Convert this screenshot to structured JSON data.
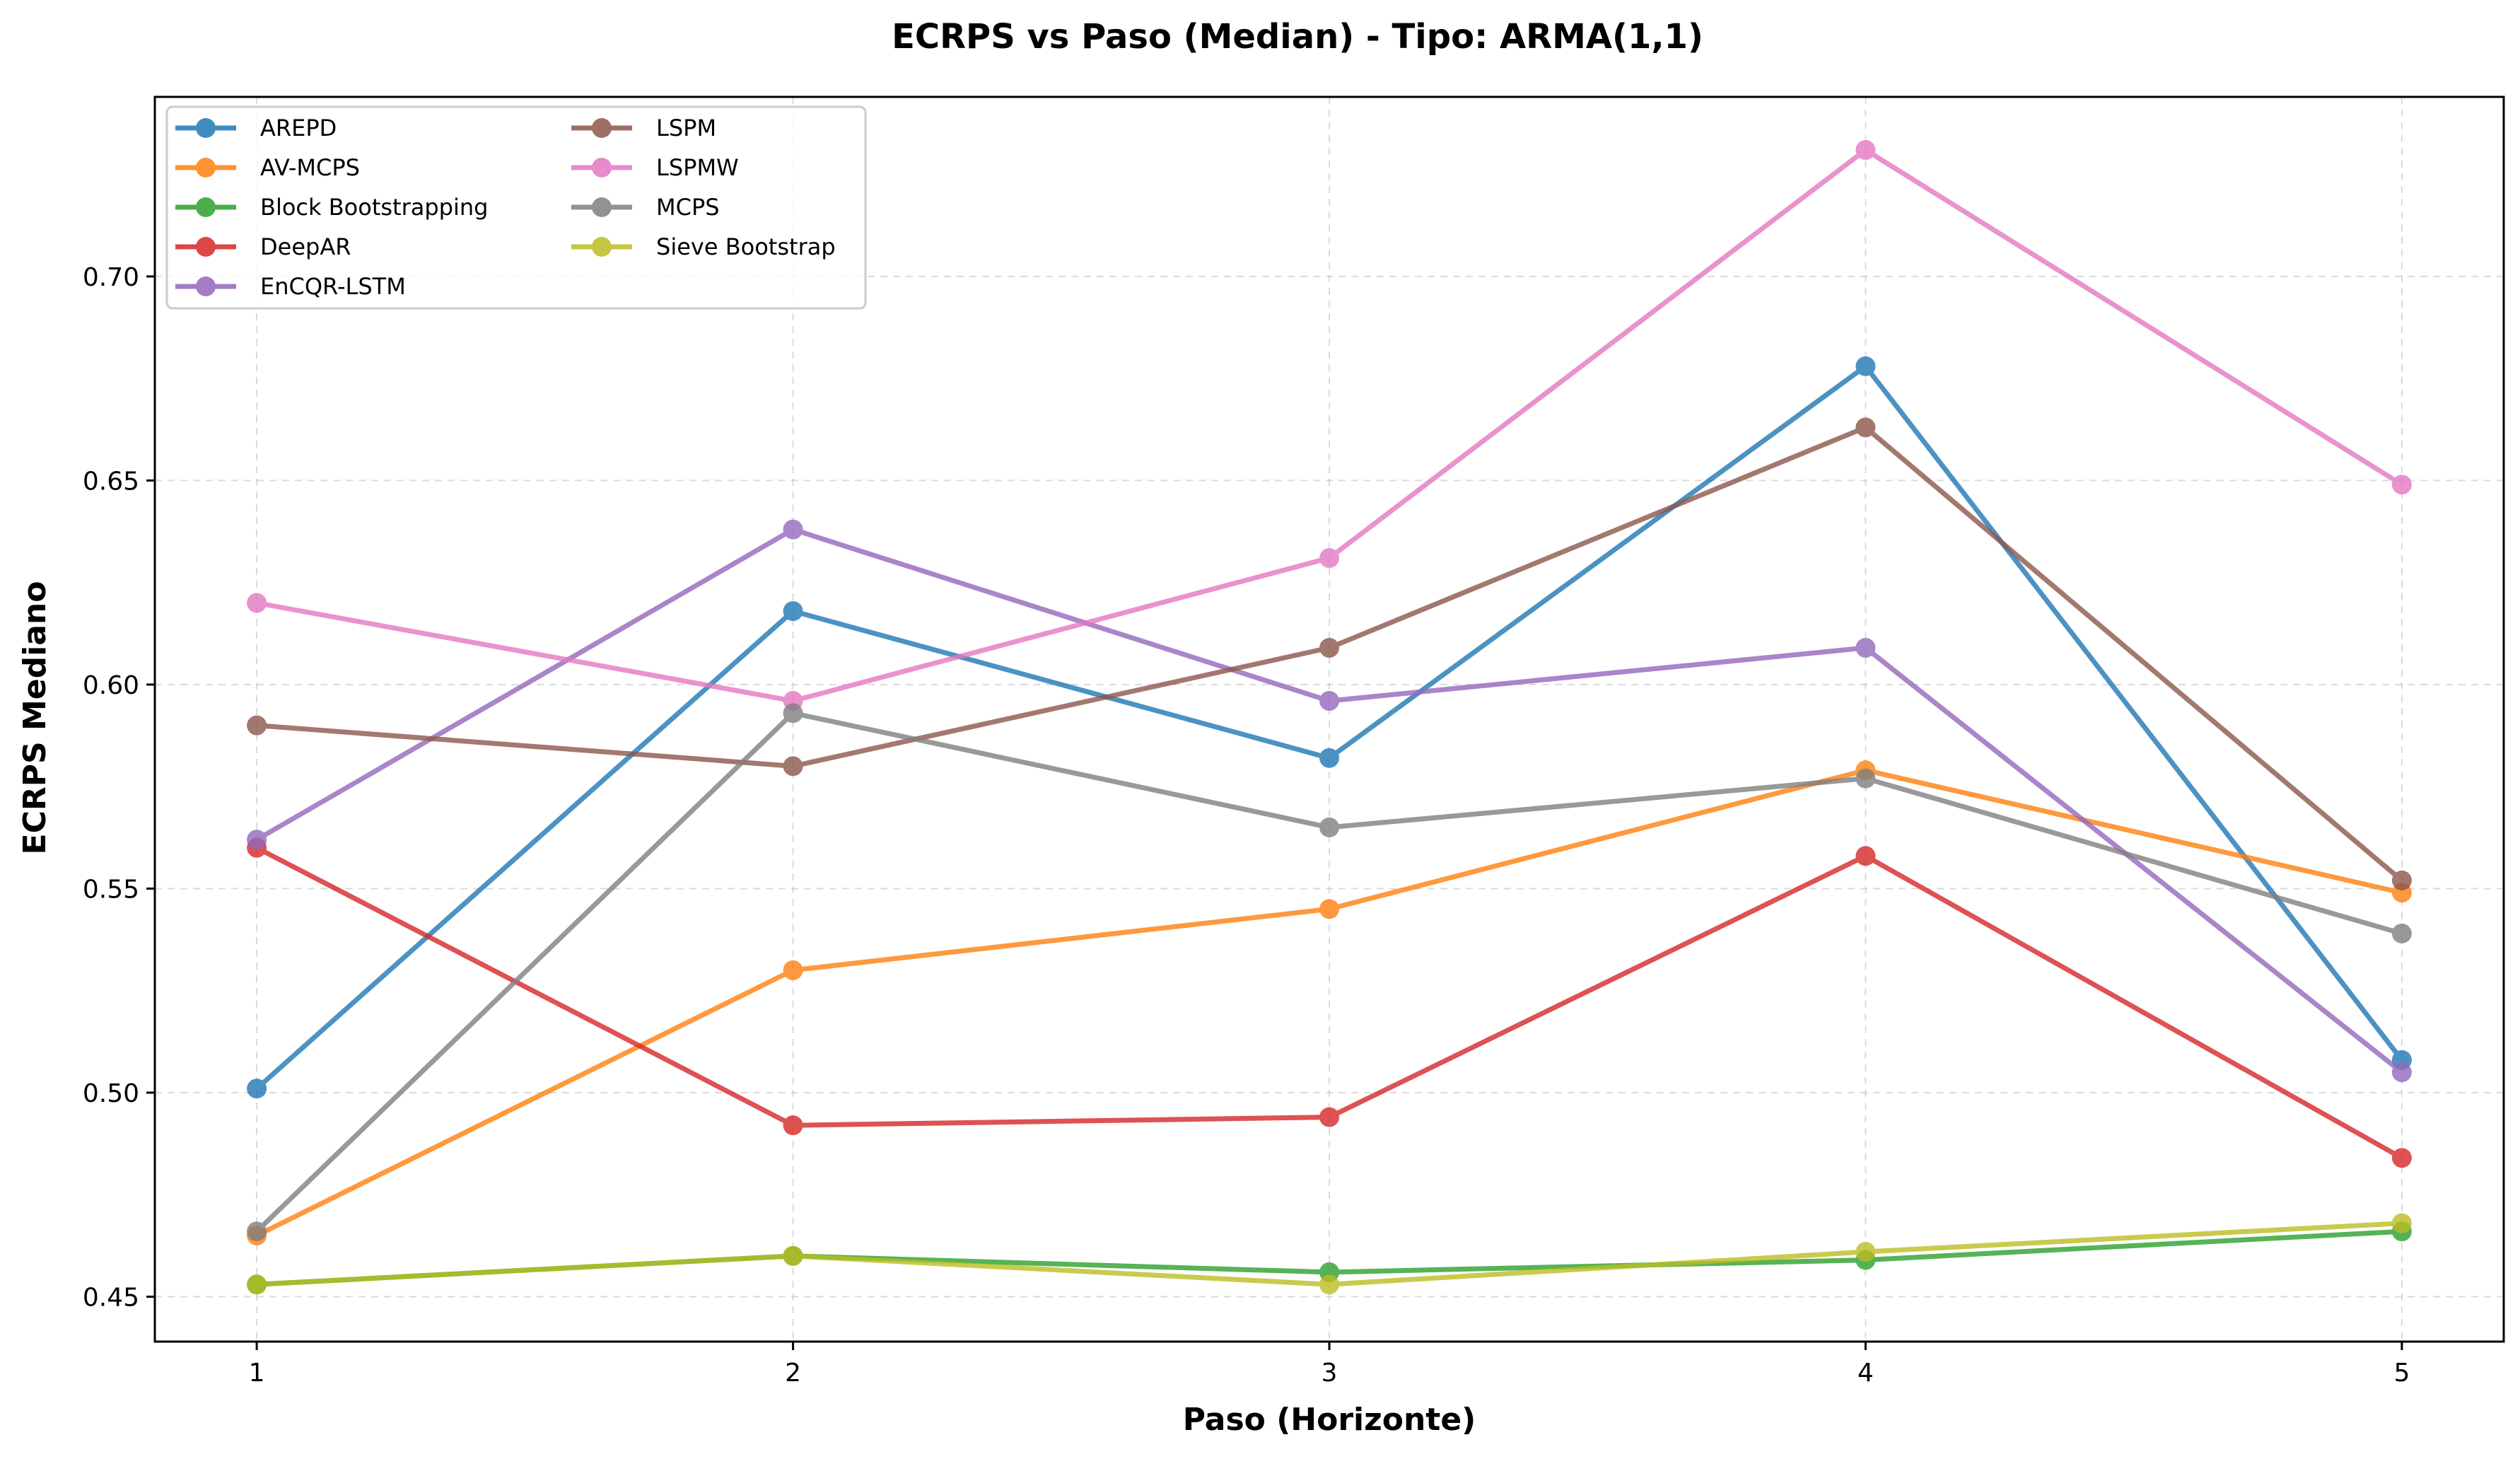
{
  "chart_data": {
    "type": "line",
    "title": "ECRPS vs Paso (Median) - Tipo: ARMA(1,1)",
    "xlabel": "Paso (Horizonte)",
    "ylabel": "ECRPS Mediano",
    "x": [
      1,
      2,
      3,
      4,
      5
    ],
    "x_tick_labels": [
      "1",
      "2",
      "3",
      "4",
      "5"
    ],
    "y_ticks": [
      0.45,
      0.5,
      0.55,
      0.6,
      0.65,
      0.7
    ],
    "y_tick_labels": [
      "0.45",
      "0.50",
      "0.55",
      "0.60",
      "0.65",
      "0.70"
    ],
    "xlim": [
      0.81,
      5.19
    ],
    "ylim": [
      0.439,
      0.744
    ],
    "grid": true,
    "legend_position": "top-left",
    "series": [
      {
        "name": "AREPD",
        "color": "#1f77b4",
        "values": [
          0.501,
          0.618,
          0.582,
          0.678,
          0.508
        ]
      },
      {
        "name": "AV-MCPS",
        "color": "#ff7f0e",
        "values": [
          0.465,
          0.53,
          0.545,
          0.579,
          0.549
        ]
      },
      {
        "name": "Block Bootstrapping",
        "color": "#2ca02c",
        "values": [
          0.453,
          0.46,
          0.456,
          0.459,
          0.466
        ]
      },
      {
        "name": "DeepAR",
        "color": "#d62728",
        "values": [
          0.56,
          0.492,
          0.494,
          0.558,
          0.484
        ]
      },
      {
        "name": "EnCQR-LSTM",
        "color": "#9467bd",
        "values": [
          0.562,
          0.638,
          0.596,
          0.609,
          0.505
        ]
      },
      {
        "name": "LSPM",
        "color": "#8c564b",
        "values": [
          0.59,
          0.58,
          0.609,
          0.663,
          0.552
        ]
      },
      {
        "name": "LSPMW",
        "color": "#e377c2",
        "values": [
          0.62,
          0.596,
          0.631,
          0.731,
          0.649
        ]
      },
      {
        "name": "MCPS",
        "color": "#7f7f7f",
        "values": [
          0.466,
          0.593,
          0.565,
          0.577,
          0.539
        ]
      },
      {
        "name": "Sieve Bootstrap",
        "color": "#bcbd22",
        "values": [
          0.453,
          0.46,
          0.453,
          0.461,
          0.468
        ]
      }
    ]
  }
}
